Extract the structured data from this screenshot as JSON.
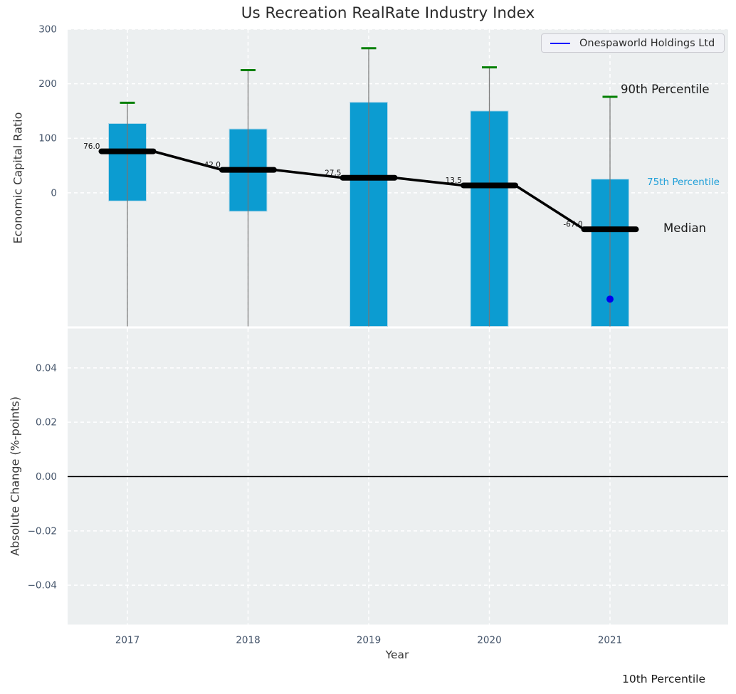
{
  "chart_data": {
    "type": "box",
    "title": "Us Recreation RealRate Industry Index",
    "legend": {
      "position": "upper right",
      "entries": [
        {
          "label": "Onespaworld Holdings Ltd",
          "color": "#0000ff"
        }
      ]
    },
    "colors": {
      "box_fill": "#0c9cd1",
      "box_edge": "#b5d8e8",
      "cap": "#008000",
      "whisker": "#777777",
      "median_line": "#000000",
      "company_point": "#0000ee",
      "axes_bg": "#eceff0",
      "grid": "#ffffff",
      "tick_label": "#44546a",
      "annotation_text": "#111111",
      "zero_line": "#000000"
    },
    "panels": [
      {
        "name": "economic_capital_ratio",
        "ylabel": "Economic Capital Ratio",
        "yticks": [
          0,
          100,
          200,
          300
        ],
        "ytick_labels": [
          "0",
          "100",
          "200",
          "300"
        ],
        "ylim": [
          -245,
          300
        ],
        "xlim": [
          2016.5,
          2022
        ],
        "grid": true,
        "categories": [
          "2017",
          "2018",
          "2019",
          "2020",
          "2021"
        ],
        "boxes": [
          {
            "year": "2017",
            "p90": 165,
            "p75": 127,
            "median": 76.0,
            "p25": -15,
            "p25_clipped": false,
            "median_label": "76.0"
          },
          {
            "year": "2018",
            "p90": 225,
            "p75": 117,
            "median": 42.0,
            "p25": -34,
            "p25_clipped": false,
            "median_label": "42.0"
          },
          {
            "year": "2019",
            "p90": 265,
            "p75": 166,
            "median": 27.5,
            "p25": -260,
            "p25_clipped": true,
            "median_label": "27.5"
          },
          {
            "year": "2020",
            "p90": 230,
            "p75": 150,
            "median": 13.5,
            "p25": -260,
            "p25_clipped": true,
            "median_label": "13.5"
          },
          {
            "year": "2021",
            "p90": 176,
            "p75": 25,
            "median": -67.0,
            "p25": -260,
            "p25_clipped": true,
            "median_label": "-67.0"
          }
        ],
        "company_point": {
          "name": "Onespaworld Holdings Ltd",
          "year": "2021",
          "value": -195
        },
        "callouts": {
          "p90": "90th Percentile",
          "p75": "75th Percentile",
          "median": "Median",
          "p10": "10th Percentile"
        }
      },
      {
        "name": "absolute_change",
        "ylabel": "Absolute Change (%-points)",
        "xlabel": "Year",
        "yticks": [
          -0.04,
          -0.02,
          0.0,
          0.02,
          0.04
        ],
        "ylim": [
          -0.0545,
          0.0545
        ],
        "grid": true,
        "zero_line": 0.0,
        "categories": [
          "2017",
          "2018",
          "2019",
          "2020",
          "2021"
        ],
        "series": []
      }
    ]
  }
}
